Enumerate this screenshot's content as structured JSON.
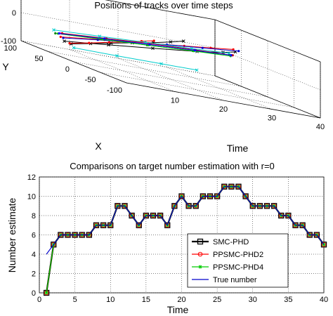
{
  "chart_data": [
    {
      "type": "line3d",
      "title": "Positions of tracks over time steps",
      "xlabel": "X",
      "ylabel": "Time",
      "zlabel": "Y",
      "x_ticks": [
        "100",
        "50",
        "0",
        "-50",
        "-100"
      ],
      "time_ticks": [
        "10",
        "20",
        "30",
        "40"
      ],
      "y_ticks": [
        "100",
        "0",
        "-100"
      ],
      "xlim": [
        -100,
        100
      ],
      "time_lim": [
        0,
        40
      ],
      "ylim": [
        -100,
        100
      ],
      "grid": true,
      "tracks": [
        {
          "color": "#000000",
          "marker": "x",
          "points": [
            [
              5,
              0,
              -40
            ],
            [
              14,
              5,
              -30
            ],
            [
              21,
              10,
              -18
            ],
            [
              27,
              15,
              -6
            ],
            [
              33,
              20,
              6
            ],
            [
              37,
              24,
              18
            ],
            [
              40,
              27,
              28
            ]
          ]
        },
        {
          "color": "#000000",
          "marker": "x",
          "points": [
            [
              18,
              0,
              -40
            ],
            [
              26,
              10,
              -28
            ],
            [
              34,
              20,
              -15
            ],
            [
              42,
              30,
              -1
            ],
            [
              48,
              36,
              10
            ],
            [
              52,
              39,
              18
            ]
          ]
        },
        {
          "color": "#ff0000",
          "marker": "dot",
          "points": [
            [
              8,
              0,
              -40
            ],
            [
              17,
              5,
              -30
            ],
            [
              25,
              10,
              -18
            ],
            [
              32,
              15,
              -6
            ],
            [
              37,
              18,
              2
            ],
            [
              41,
              21,
              10
            ]
          ]
        },
        {
          "color": "#ff0000",
          "marker": "dot",
          "points": [
            [
              25,
              0,
              -30
            ],
            [
              34,
              10,
              -16
            ],
            [
              42,
              20,
              -3
            ],
            [
              48,
              28,
              8
            ],
            [
              53,
              34,
              16
            ],
            [
              56,
              39,
              24
            ]
          ]
        },
        {
          "color": "#0000cc",
          "marker": "dot",
          "points": [
            [
              20,
              0,
              -30
            ],
            [
              28,
              8,
              -18
            ],
            [
              36,
              16,
              -8
            ],
            [
              44,
              24,
              3
            ],
            [
              50,
              32,
              12
            ],
            [
              55,
              40,
              22
            ]
          ]
        },
        {
          "color": "#008800",
          "marker": "dot",
          "points": [
            [
              35,
              0,
              -25
            ],
            [
              40,
              10,
              -18
            ],
            [
              45,
              20,
              -12
            ],
            [
              50,
              30,
              -5
            ],
            [
              55,
              38,
              2
            ]
          ]
        },
        {
          "color": "#00cc00",
          "marker": "dot",
          "points": [
            [
              30,
              0,
              -22
            ],
            [
              36,
              10,
              -16
            ],
            [
              42,
              20,
              -10
            ],
            [
              48,
              30,
              -4
            ],
            [
              52,
              38,
              0
            ]
          ]
        },
        {
          "color": "#ff00ff",
          "marker": "dot",
          "points": [
            [
              26,
              0,
              -18
            ],
            [
              33,
              10,
              -10
            ],
            [
              40,
              20,
              -3
            ],
            [
              46,
              30,
              2
            ],
            [
              50,
              38,
              4
            ]
          ]
        },
        {
          "color": "#cc0000",
          "marker": "dot",
          "points": [
            [
              22,
              0,
              -15
            ],
            [
              30,
              10,
              -8
            ],
            [
              38,
              20,
              -1
            ],
            [
              44,
              30,
              3
            ],
            [
              48,
              38,
              6
            ]
          ]
        },
        {
          "color": "#00cccc",
          "marker": "x",
          "points": [
            [
              0,
              0,
              -50
            ],
            [
              10,
              10,
              -55
            ],
            [
              18,
              20,
              -58
            ],
            [
              24,
              28,
              -60
            ]
          ]
        },
        {
          "color": "#00cccc",
          "marker": "x",
          "points": [
            [
              38,
              0,
              -15
            ],
            [
              43,
              10,
              -10
            ],
            [
              48,
              20,
              -4
            ],
            [
              52,
              30,
              2
            ],
            [
              55,
              38,
              8
            ]
          ]
        },
        {
          "color": "#0000ff",
          "marker": "dot",
          "points": [
            [
              28,
              0,
              -20
            ],
            [
              34,
              10,
              -12
            ],
            [
              40,
              20,
              -6
            ],
            [
              46,
              30,
              0
            ],
            [
              51,
              38,
              4
            ]
          ]
        }
      ]
    },
    {
      "type": "line",
      "title": "Comparisons on target number estimation with r=0",
      "xlabel": "Time",
      "ylabel": "Number estimate",
      "xlim": [
        0,
        40
      ],
      "ylim": [
        0,
        12
      ],
      "x_ticks": [
        "0",
        "5",
        "10",
        "15",
        "20",
        "25",
        "30",
        "35",
        "40"
      ],
      "y_ticks": [
        "0",
        "2",
        "4",
        "6",
        "8",
        "10",
        "12"
      ],
      "grid": true,
      "legend_position": "bottom-right",
      "x": [
        1,
        2,
        3,
        4,
        5,
        6,
        7,
        8,
        9,
        10,
        11,
        12,
        13,
        14,
        15,
        16,
        17,
        18,
        19,
        20,
        21,
        22,
        23,
        24,
        25,
        26,
        27,
        28,
        29,
        30,
        31,
        32,
        33,
        34,
        35,
        36,
        37,
        38,
        39,
        40
      ],
      "series": [
        {
          "name": "SMC-PHD",
          "color": "#000000",
          "marker": "square",
          "values": [
            0,
            5,
            6,
            6,
            6,
            6,
            6,
            7,
            7,
            7,
            9,
            9,
            8,
            7,
            8,
            8,
            8,
            7,
            9,
            10,
            9,
            9,
            10,
            10,
            10,
            11,
            11,
            11,
            10,
            9,
            9,
            9,
            9,
            8,
            8,
            7,
            7,
            6,
            6,
            5
          ]
        },
        {
          "name": "PPSMC-PHD2",
          "color": "#ff0000",
          "marker": "circle",
          "values": [
            0,
            5,
            6,
            6,
            6,
            6,
            6,
            7,
            7,
            7,
            9,
            9,
            8,
            7,
            8,
            8,
            8,
            7,
            9,
            10,
            9,
            9,
            10,
            10,
            10,
            11,
            11,
            11,
            10,
            9,
            9,
            9,
            9,
            8,
            8,
            7,
            7,
            6,
            6,
            5
          ]
        },
        {
          "name": "PPSMC-PHD4",
          "color": "#00cc00",
          "marker": "star",
          "values": [
            0,
            5,
            6,
            6,
            6,
            6,
            6,
            7,
            7,
            7,
            9,
            9,
            8,
            7,
            8,
            8,
            8,
            7,
            9,
            10,
            9,
            9,
            10,
            10,
            10,
            11,
            11,
            11,
            10,
            9,
            9,
            9,
            9,
            8,
            8,
            7,
            7,
            6,
            6,
            5
          ]
        },
        {
          "name": "True number",
          "color": "#0000cc",
          "marker": "none",
          "values": [
            4,
            5,
            6,
            6,
            6,
            6,
            6,
            7,
            7,
            7,
            9,
            9,
            8,
            7,
            8,
            8,
            8,
            7,
            9,
            10,
            9,
            9,
            10,
            10,
            10,
            11,
            11,
            11,
            10,
            9,
            9,
            9,
            9,
            8,
            8,
            7,
            7,
            6,
            6,
            5
          ]
        }
      ]
    }
  ]
}
